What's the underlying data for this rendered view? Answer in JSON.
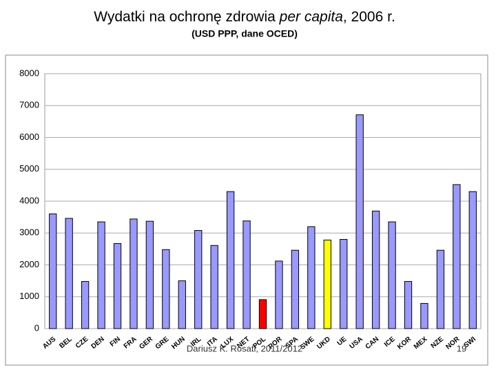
{
  "chart_data": {
    "type": "bar",
    "title": [
      "Wydatki na ochronę zdrowia ",
      "per capita",
      ", 2006 r."
    ],
    "subtitle": "(USD PPP, dane OCED)",
    "categories": [
      "AUS",
      "BEL",
      "CZE",
      "DEN",
      "FIN",
      "FRA",
      "GER",
      "GRE",
      "HUN",
      "IRL",
      "ITA",
      "LUX",
      "NET",
      "POL",
      "POR",
      "SPA",
      "SWE",
      "UKD",
      "UE",
      "USA",
      "CAN",
      "ICE",
      "KOR",
      "MEX",
      "NZE",
      "NOR",
      "SWI"
    ],
    "values": [
      3600,
      3460,
      1480,
      3350,
      2670,
      3440,
      3370,
      2480,
      1500,
      3080,
      2610,
      4300,
      3380,
      910,
      2120,
      2460,
      3200,
      2780,
      2800,
      6710,
      3690,
      3350,
      1480,
      790,
      2460,
      4520,
      4300
    ],
    "colors": [
      "#9999ff",
      "#9999ff",
      "#9999ff",
      "#9999ff",
      "#9999ff",
      "#9999ff",
      "#9999ff",
      "#9999ff",
      "#9999ff",
      "#9999ff",
      "#9999ff",
      "#9999ff",
      "#9999ff",
      "#ff0000",
      "#9999ff",
      "#9999ff",
      "#9999ff",
      "#ffff00",
      "#9999ff",
      "#9999ff",
      "#9999ff",
      "#9999ff",
      "#9999ff",
      "#9999ff",
      "#9999ff",
      "#9999ff",
      "#9999ff"
    ],
    "ylim": [
      0,
      8000
    ],
    "yticks": [
      0,
      1000,
      2000,
      3000,
      4000,
      5000,
      6000,
      7000,
      8000
    ],
    "grid": true
  },
  "footer": {
    "author": "Dariusz K. Rosati, 2011/2012",
    "page": "19"
  }
}
